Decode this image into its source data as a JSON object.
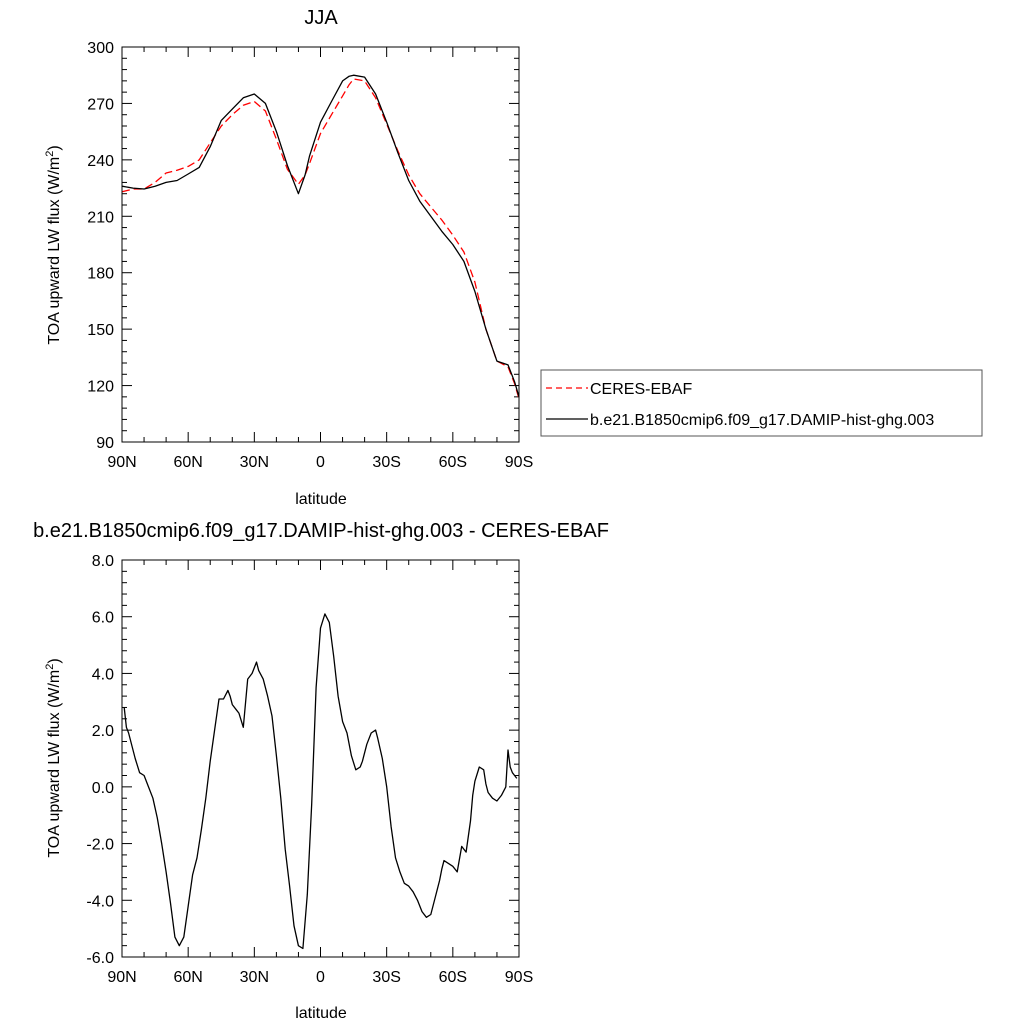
{
  "chart_data": [
    {
      "type": "line",
      "title": "JJA",
      "xlabel": "latitude",
      "ylabel": "TOA upward LW flux (W/m",
      "ylabel_sup": "2",
      "ylabel_tail": ")",
      "xlim": [
        90,
        -90
      ],
      "ylim": [
        90,
        300
      ],
      "xticks": [
        90,
        60,
        30,
        0,
        -30,
        -60,
        -90
      ],
      "xtick_labels": [
        "90N",
        "60N",
        "30N",
        "0",
        "30S",
        "60S",
        "90S"
      ],
      "yticks": [
        90,
        120,
        150,
        180,
        210,
        240,
        270,
        300
      ],
      "ytick_labels": [
        "90",
        "120",
        "150",
        "180",
        "210",
        "240",
        "270",
        "300"
      ],
      "grid": false,
      "legend_position": "right",
      "series": [
        {
          "name": "CERES-EBAF",
          "color": "#ff0000",
          "dash": "dashed",
          "x": [
            90,
            85,
            80,
            75,
            70,
            65,
            60,
            55,
            50,
            45,
            40,
            35,
            30,
            25,
            20,
            15,
            10,
            7,
            5,
            0,
            -5,
            -10,
            -13,
            -15,
            -20,
            -25,
            -30,
            -35,
            -40,
            -45,
            -50,
            -55,
            -60,
            -65,
            -70,
            -75,
            -80,
            -85,
            -88,
            -90
          ],
          "y": [
            223,
            224.5,
            224.5,
            228,
            233,
            234.5,
            236.5,
            240,
            249,
            258,
            264,
            269,
            271,
            266,
            251,
            235,
            227,
            232,
            238,
            254,
            264,
            274,
            280,
            283,
            282,
            273,
            259,
            245,
            232,
            222,
            215,
            208,
            200,
            191,
            175,
            150,
            133,
            130,
            121,
            113
          ]
        },
        {
          "name": "b.e21.B1850cmip6.f09_g17.DAMIP-hist-ghg.003",
          "color": "#000000",
          "dash": "solid",
          "x": [
            90,
            85,
            80,
            75,
            70,
            65,
            60,
            55,
            50,
            45,
            40,
            35,
            30,
            25,
            20,
            15,
            10,
            7,
            5,
            0,
            -5,
            -10,
            -13,
            -15,
            -20,
            -25,
            -30,
            -35,
            -40,
            -45,
            -50,
            -55,
            -60,
            -65,
            -70,
            -75,
            -80,
            -85,
            -88,
            -90
          ],
          "y": [
            226,
            225,
            224.5,
            226,
            228,
            229,
            232.5,
            236,
            247,
            261,
            267,
            273,
            275,
            270,
            255,
            237,
            222,
            232,
            242,
            260,
            271,
            282,
            284.5,
            285,
            284,
            275,
            260,
            244,
            229,
            218,
            210,
            202,
            195,
            186,
            170,
            150,
            133,
            131,
            122,
            114
          ]
        }
      ]
    },
    {
      "type": "line",
      "title": "b.e21.B1850cmip6.f09_g17.DAMIP-hist-ghg.003 - CERES-EBAF",
      "xlabel": "latitude",
      "ylabel": "TOA upward LW flux (W/m",
      "ylabel_sup": "2",
      "ylabel_tail": ")",
      "xlim": [
        90,
        -90
      ],
      "ylim": [
        -6,
        8
      ],
      "xticks": [
        90,
        60,
        30,
        0,
        -30,
        -60,
        -90
      ],
      "xtick_labels": [
        "90N",
        "60N",
        "30N",
        "0",
        "30S",
        "60S",
        "90S"
      ],
      "yticks": [
        -6,
        -4,
        -2,
        0,
        2,
        4,
        6,
        8
      ],
      "ytick_labels": [
        "-6.0",
        "-4.0",
        "-2.0",
        "0.0",
        "2.0",
        "4.0",
        "6.0",
        "8.0"
      ],
      "grid": false,
      "series": [
        {
          "name": "b.e21.B1850cmip6.f09_g17.DAMIP-hist-ghg.003 - CERES-EBAF",
          "color": "#000000",
          "dash": "solid",
          "x": [
            89,
            88,
            87,
            85,
            84,
            82,
            80,
            78,
            76,
            74,
            72,
            70,
            68,
            66,
            64,
            62,
            60,
            58,
            56,
            54,
            52,
            50,
            48,
            46,
            44,
            42,
            41,
            40,
            38,
            37,
            35,
            33,
            31,
            30,
            29,
            28,
            26,
            24,
            22,
            20,
            18,
            16,
            14,
            12,
            10,
            8,
            6,
            4,
            2,
            0,
            -2,
            -4,
            -5,
            -6,
            -7,
            -8,
            -10,
            -12,
            -14,
            -16,
            -18,
            -19,
            -21,
            -23,
            -25,
            -26,
            -28,
            -30,
            -32,
            -34,
            -36,
            -38,
            -40,
            -42,
            -44,
            -46,
            -48,
            -50,
            -52,
            -54,
            -55,
            -56,
            -58,
            -60,
            -62,
            -64,
            -66,
            -68,
            -69,
            -70,
            -72,
            -74,
            -75,
            -76,
            -78,
            -80,
            -82,
            -84,
            -85,
            -86,
            -87,
            -88,
            -89
          ],
          "y": [
            2.8,
            2.1,
            1.9,
            1.3,
            1.0,
            0.5,
            0.4,
            0.0,
            -0.4,
            -1.1,
            -2.0,
            -3.0,
            -4.1,
            -5.3,
            -5.6,
            -5.3,
            -4.2,
            -3.1,
            -2.5,
            -1.5,
            -0.4,
            0.9,
            2.0,
            3.1,
            3.1,
            3.4,
            3.2,
            2.9,
            2.7,
            2.6,
            2.1,
            3.8,
            4.0,
            4.2,
            4.4,
            4.1,
            3.8,
            3.2,
            2.5,
            1.1,
            -0.4,
            -2.2,
            -3.5,
            -4.9,
            -5.6,
            -5.7,
            -3.8,
            -0.6,
            3.5,
            5.6,
            6.1,
            5.8,
            5.2,
            4.6,
            3.9,
            3.2,
            2.3,
            1.9,
            1.1,
            0.6,
            0.7,
            0.9,
            1.5,
            1.9,
            2.0,
            1.7,
            1.0,
            0.0,
            -1.4,
            -2.5,
            -3.0,
            -3.4,
            -3.5,
            -3.7,
            -4.0,
            -4.4,
            -4.6,
            -4.5,
            -3.9,
            -3.3,
            -2.9,
            -2.6,
            -2.7,
            -2.8,
            -3.0,
            -2.1,
            -2.3,
            -1.2,
            -0.3,
            0.2,
            0.7,
            0.6,
            0.1,
            -0.2,
            -0.4,
            -0.5,
            -0.3,
            0.0,
            1.3,
            0.7,
            0.5,
            0.4,
            0.3
          ]
        }
      ]
    }
  ]
}
